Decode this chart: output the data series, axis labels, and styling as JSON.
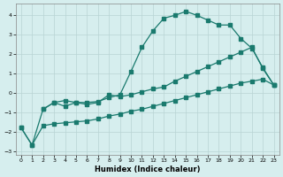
{
  "xlabel": "Humidex (Indice chaleur)",
  "background_color": "#d6eeee",
  "grid_color": "#b8d4d4",
  "line_color": "#1a7a6e",
  "xlim": [
    -0.5,
    23.5
  ],
  "ylim": [
    -3.2,
    4.6
  ],
  "xticks": [
    0,
    1,
    2,
    3,
    4,
    5,
    6,
    7,
    8,
    9,
    10,
    11,
    12,
    13,
    14,
    15,
    16,
    17,
    18,
    19,
    20,
    21,
    22,
    23
  ],
  "yticks": [
    -3,
    -2,
    -1,
    0,
    1,
    2,
    3,
    4
  ],
  "series1_x": [
    0,
    1,
    2,
    3,
    4,
    5,
    6,
    7,
    8,
    9,
    10,
    11,
    12,
    13,
    14,
    15,
    16,
    17,
    18,
    19,
    20,
    21,
    22,
    23
  ],
  "series1_y": [
    -1.8,
    -2.7,
    -0.85,
    -0.5,
    -0.4,
    -0.5,
    -0.5,
    -0.45,
    -0.25,
    -0.1,
    1.1,
    2.35,
    3.2,
    3.85,
    4.0,
    4.2,
    4.0,
    3.75,
    3.5,
    3.5,
    2.8,
    2.3,
    1.3,
    0.4
  ],
  "series2_x": [
    2,
    3,
    4,
    5,
    6,
    7,
    8,
    9,
    10,
    11,
    12,
    13,
    14,
    15,
    16,
    17,
    18,
    19,
    20,
    21,
    22,
    23
  ],
  "series2_y": [
    -0.85,
    -0.5,
    -0.7,
    -0.5,
    -0.6,
    -0.5,
    -0.1,
    -0.2,
    -0.1,
    0.05,
    0.2,
    0.3,
    0.6,
    0.85,
    1.1,
    1.35,
    1.6,
    1.85,
    2.1,
    2.35,
    1.25,
    0.4
  ],
  "series3_x": [
    0,
    1,
    2,
    3,
    4,
    5,
    6,
    7,
    8,
    9,
    10,
    11,
    12,
    13,
    14,
    15,
    16,
    17,
    18,
    19,
    20,
    21,
    22,
    23
  ],
  "series3_y": [
    -1.8,
    -2.7,
    -1.7,
    -1.6,
    -1.55,
    -1.5,
    -1.45,
    -1.35,
    -1.2,
    -1.1,
    -0.95,
    -0.85,
    -0.7,
    -0.55,
    -0.4,
    -0.25,
    -0.1,
    0.05,
    0.2,
    0.35,
    0.5,
    0.6,
    0.7,
    0.4
  ]
}
